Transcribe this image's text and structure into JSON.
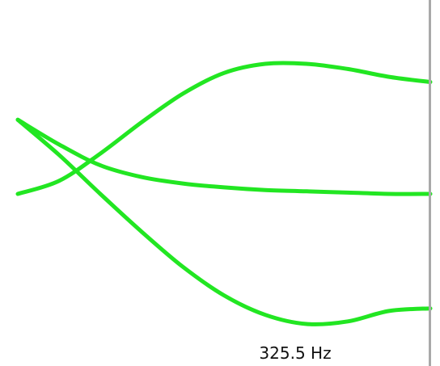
{
  "frequency_label": "325.5 Hz",
  "colors": {
    "curve": "#22e622",
    "border": "#a9a9a9",
    "background": "#ffffff"
  },
  "chart_data": {
    "type": "line",
    "title": "",
    "xlabel": "",
    "ylabel": "",
    "grid": false,
    "legend": "none",
    "xlim": [
      0,
      1
    ],
    "ylim": [
      -1,
      1
    ],
    "series": [
      {
        "x": [
          0,
          0.1,
          0.2,
          0.3,
          0.4,
          0.5,
          0.6,
          0.7,
          0.8,
          0.9,
          1.0
        ],
        "values": [
          0.0,
          0.1,
          0.31,
          0.55,
          0.77,
          0.93,
          1.0,
          1.0,
          0.96,
          0.9,
          0.86
        ]
      },
      {
        "x": [
          0,
          0.1,
          0.2,
          0.3,
          0.4,
          0.5,
          0.6,
          0.7,
          0.8,
          0.9,
          1.0
        ],
        "values": [
          0.57,
          0.38,
          0.22,
          0.13,
          0.08,
          0.05,
          0.03,
          0.02,
          0.01,
          0.0,
          0.0
        ]
      },
      {
        "x": [
          0,
          0.1,
          0.2,
          0.3,
          0.4,
          0.5,
          0.6,
          0.7,
          0.8,
          0.9,
          1.0
        ],
        "values": [
          0.57,
          0.3,
          0.0,
          -0.29,
          -0.56,
          -0.78,
          -0.93,
          -1.0,
          -0.98,
          -0.9,
          -0.88
        ]
      }
    ]
  }
}
